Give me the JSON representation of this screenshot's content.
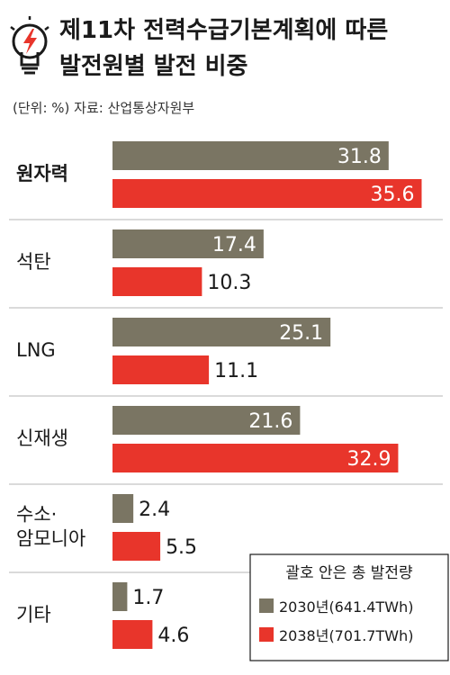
{
  "header": {
    "title_line1": "제11차 전력수급기본계획에 따른",
    "title_line2": "발전원별 발전 비중",
    "source": "(단위: %) 자료: 산업통상자원부"
  },
  "icon": {
    "name": "lightbulb-bolt-icon"
  },
  "legend": {
    "title": "괄호 안은 총 발전량",
    "items": [
      "2030년(641.4TWh)",
      "2038년(701.7TWh)"
    ]
  },
  "colors": {
    "series_2030": "#7a7563",
    "series_2038": "#e8352b",
    "divider": "#b5b5b5"
  },
  "chart_data": {
    "type": "bar",
    "orientation": "horizontal",
    "title": "제11차 전력수급기본계획에 따른 발전원별 발전 비중",
    "unit": "%",
    "categories": [
      [
        "원자력"
      ],
      [
        "석탄"
      ],
      [
        "LNG"
      ],
      [
        "신재생"
      ],
      [
        "수소·",
        "암모니아"
      ],
      [
        "기타"
      ]
    ],
    "series": [
      {
        "name": "2030년(641.4TWh)",
        "values": [
          31.8,
          17.4,
          25.1,
          21.6,
          2.4,
          1.7
        ]
      },
      {
        "name": "2038년(701.7TWh)",
        "values": [
          35.6,
          10.3,
          11.1,
          32.9,
          5.5,
          4.6
        ]
      }
    ],
    "xlim": [
      0,
      37
    ],
    "grid": false,
    "legend_position": "bottom-right"
  }
}
